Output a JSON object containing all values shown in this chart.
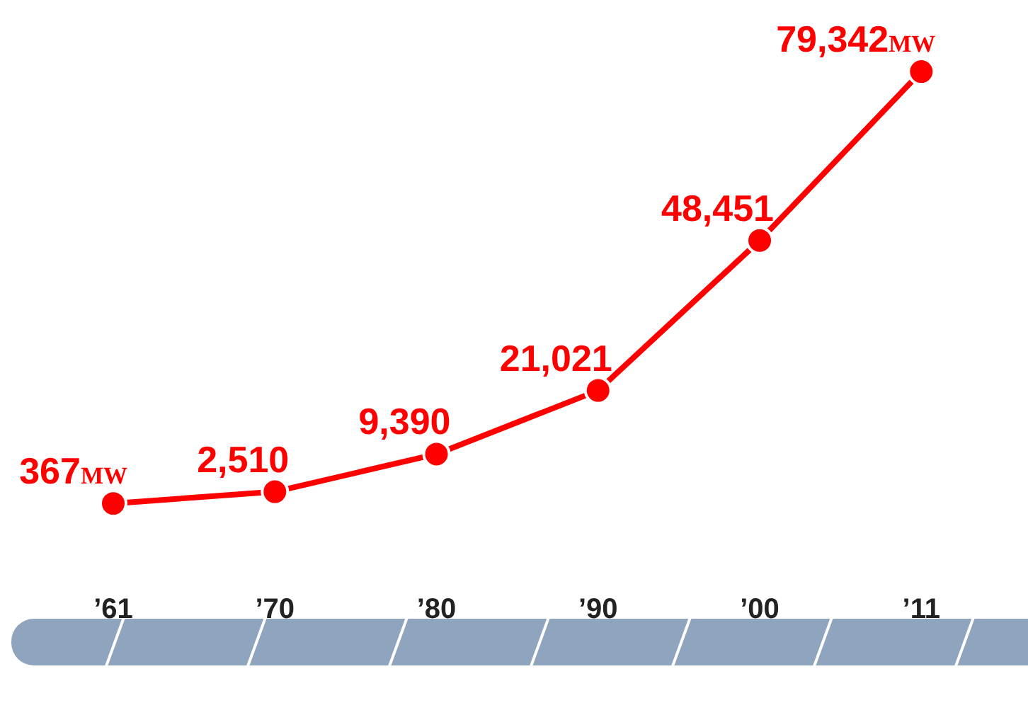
{
  "chart_data": {
    "type": "line",
    "categories": [
      "’61",
      "’70",
      "’80",
      "’90",
      "’00",
      "’11"
    ],
    "series": [
      {
        "color": "#ff0000",
        "values": [
          367,
          2510,
          9390,
          21021,
          48451,
          79342
        ],
        "value_labels": [
          "367MW",
          "2,510",
          "9,390",
          "21,021",
          "48,451",
          "79,342MW"
        ]
      }
    ],
    "marker": "circle",
    "line_style": "solid",
    "grid": false,
    "legend": false,
    "tick_labels": "x"
  }
}
